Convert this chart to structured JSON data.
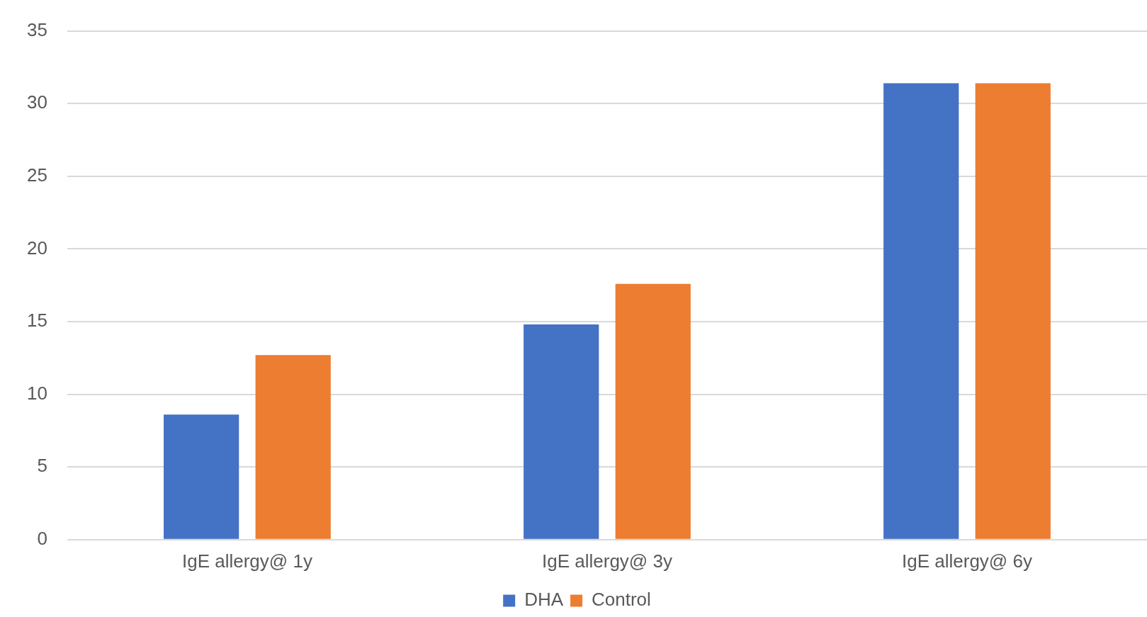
{
  "chart_data": {
    "type": "bar",
    "categories": [
      "IgE allergy@ 1y",
      "IgE allergy@ 3y",
      "IgE allergy@ 6y"
    ],
    "series": [
      {
        "name": "DHA",
        "color": "#4472c4",
        "values": [
          8.6,
          14.8,
          31.4
        ]
      },
      {
        "name": "Control",
        "color": "#ed7d31",
        "values": [
          12.7,
          17.6,
          31.4
        ]
      }
    ],
    "ylim": [
      0,
      35
    ],
    "yticks": [
      0,
      5,
      10,
      15,
      20,
      25,
      30,
      35
    ],
    "grid": "y",
    "legend": "bottom"
  }
}
